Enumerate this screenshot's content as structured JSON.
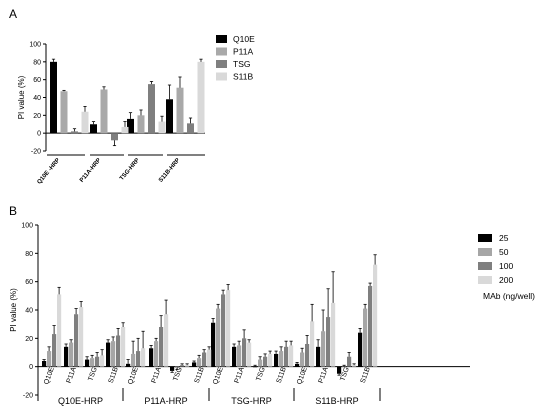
{
  "chart_data": [
    {
      "panel": "A",
      "type": "bar",
      "ylabel": "PI value (%)",
      "ylim": [
        -20,
        100
      ],
      "yticks": [
        -20,
        0,
        20,
        40,
        60,
        80,
        100
      ],
      "categories": [
        "Q10E -HRP",
        "P11A-HRP",
        "TSG-HRP",
        "S11B-HRP"
      ],
      "series": [
        {
          "name": "Q10E",
          "color": "#000000",
          "values": [
            80,
            10,
            16,
            38
          ],
          "errors": [
            3,
            3,
            7,
            16
          ]
        },
        {
          "name": "P11A",
          "color": "#a9a9a9",
          "values": [
            47,
            49,
            20,
            51
          ],
          "errors": [
            1,
            3,
            6,
            12
          ]
        },
        {
          "name": "TSG",
          "color": "#7f7f7f",
          "values": [
            2,
            -8,
            55,
            11
          ],
          "errors": [
            3,
            6,
            3,
            6
          ]
        },
        {
          "name": "S11B",
          "color": "#d9d9d9",
          "values": [
            24,
            7,
            13,
            80
          ],
          "errors": [
            6,
            6,
            6,
            3
          ]
        }
      ]
    },
    {
      "panel": "B",
      "type": "bar",
      "ylabel": "PI value (%)",
      "ylim": [
        -20,
        100
      ],
      "yticks": [
        -20,
        0,
        20,
        40,
        60,
        80,
        100
      ],
      "groups": [
        "Q10E-HRP",
        "P11A-HRP",
        "TSG-HRP",
        "S11B-HRP"
      ],
      "subcategories": [
        "Q10E",
        "P11A",
        "TSG",
        "S11B"
      ],
      "legend_title": "MAb (ng/well)",
      "series": [
        {
          "name": "25",
          "color": "#000000",
          "values": [
            4,
            14,
            5,
            17,
            2,
            13,
            -3,
            3,
            31,
            14,
            0,
            9,
            2,
            14,
            -5,
            24
          ],
          "errors": [
            1,
            2,
            2,
            2,
            3,
            2,
            1,
            1,
            3,
            2,
            1,
            2,
            1,
            5,
            1,
            3
          ]
        },
        {
          "name": "50",
          "color": "#a6a6a6",
          "values": [
            11,
            17,
            6,
            18,
            9,
            18,
            -1,
            6,
            41,
            15,
            5,
            11,
            10,
            25,
            0,
            41
          ],
          "errors": [
            3,
            2,
            2,
            3,
            9,
            2,
            1,
            2,
            3,
            3,
            2,
            3,
            3,
            15,
            1,
            3
          ]
        },
        {
          "name": "100",
          "color": "#7f7f7f",
          "values": [
            23,
            37,
            7,
            22,
            11,
            28,
            1,
            10,
            51,
            20,
            7,
            14,
            16,
            35,
            7,
            57
          ],
          "errors": [
            6,
            4,
            3,
            5,
            9,
            8,
            1,
            2,
            3,
            6,
            2,
            4,
            6,
            20,
            3,
            2
          ]
        },
        {
          "name": "200",
          "color": "#d9d9d9",
          "values": [
            51,
            42,
            8,
            28,
            13,
            37,
            1,
            12,
            54,
            17,
            9,
            15,
            32,
            45,
            1,
            72
          ],
          "errors": [
            5,
            4,
            4,
            3,
            12,
            10,
            1,
            2,
            4,
            2,
            2,
            3,
            12,
            22,
            1,
            7
          ]
        }
      ]
    }
  ],
  "labels": {
    "panel_a": "A",
    "panel_b": "B"
  }
}
